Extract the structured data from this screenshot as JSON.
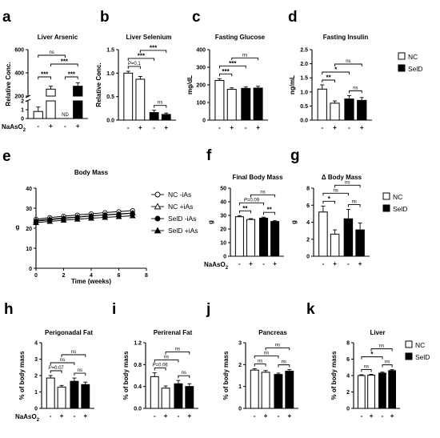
{
  "treatment_label": "NaAsO",
  "treatment_subscript": "2",
  "x_signs": [
    "-",
    "+",
    "-",
    "+"
  ],
  "legend": {
    "nc": "NC",
    "seld": "SelD"
  },
  "colors": {
    "nc_fill": "#ffffff",
    "seld_fill": "#000000",
    "axis": "#000000"
  },
  "chart_data": [
    {
      "id": "a",
      "letter": "a",
      "type": "bar",
      "title": "Liver Arsenic",
      "ylabel": "Relative Conc.",
      "categories": [
        "NC -",
        "NC +",
        "SelD -",
        "SelD +"
      ],
      "values": [
        0.8,
        260,
        0,
        285
      ],
      "errors": [
        0.5,
        25,
        0,
        30
      ],
      "ylim": [
        0,
        600
      ],
      "broken_axis": true,
      "yticks_low": [
        "0",
        "1",
        "2"
      ],
      "yticks_high": [
        "200",
        "400",
        "600"
      ],
      "annotations": [
        {
          "label": "***",
          "from": 0,
          "to": 1
        },
        {
          "label": "***",
          "from": 2,
          "to": 3
        },
        {
          "label": "***",
          "from": 1,
          "to": 3
        },
        {
          "label": "ns",
          "from": 0,
          "to": 2
        },
        {
          "label": "ND",
          "at": 2
        }
      ]
    },
    {
      "id": "b",
      "letter": "b",
      "type": "bar",
      "title": "Liver Selenium",
      "ylabel": "Relative Conc.",
      "values": [
        1.0,
        0.87,
        0.16,
        0.12
      ],
      "errors": [
        0.04,
        0.06,
        0.05,
        0.03
      ],
      "ylim": [
        0,
        1.5
      ],
      "yticks": [
        "0.0",
        "0.5",
        "1.0",
        "1.5"
      ],
      "annotations": [
        {
          "label": "P=0.1",
          "from": 0,
          "to": 1
        },
        {
          "label": "ns",
          "from": 2,
          "to": 3
        },
        {
          "label": "***",
          "from": 0,
          "to": 2
        },
        {
          "label": "***",
          "from": 1,
          "to": 3
        }
      ]
    },
    {
      "id": "c",
      "letter": "c",
      "type": "bar",
      "title": "Fasting Glucose",
      "ylabel": "mg/dL",
      "values": [
        225,
        175,
        180,
        182
      ],
      "errors": [
        10,
        8,
        8,
        10
      ],
      "ylim": [
        0,
        400
      ],
      "yticks": [
        "0",
        "100",
        "200",
        "300",
        "400"
      ],
      "annotations": [
        {
          "label": "***",
          "from": 0,
          "to": 1
        },
        {
          "label": "***",
          "from": 0,
          "to": 2
        },
        {
          "label": "ns",
          "from": 1,
          "to": 3
        }
      ]
    },
    {
      "id": "d",
      "letter": "d",
      "type": "bar",
      "title": "Fasting Insulin",
      "ylabel": "ng/mL",
      "values": [
        1.1,
        0.6,
        0.75,
        0.7
      ],
      "errors": [
        0.15,
        0.08,
        0.12,
        0.1
      ],
      "ylim": [
        0,
        2.5
      ],
      "yticks": [
        "0.0",
        "0.5",
        "1.0",
        "1.5",
        "2.0",
        "2.5"
      ],
      "annotations": [
        {
          "label": "**",
          "from": 0,
          "to": 1
        },
        {
          "label": "ns",
          "from": 2,
          "to": 3
        },
        {
          "label": "*",
          "from": 0,
          "to": 2
        },
        {
          "label": "ns",
          "from": 1,
          "to": 3
        }
      ]
    },
    {
      "id": "e",
      "letter": "e",
      "type": "line",
      "title": "Body Mass",
      "ylabel": "g",
      "xlabel": "Time (weeks)",
      "x": [
        0,
        1,
        2,
        3,
        4,
        5,
        6,
        7
      ],
      "xlim": [
        0,
        8
      ],
      "ylim": [
        0,
        40
      ],
      "xticks": [
        "0",
        "2",
        "4",
        "6",
        "8"
      ],
      "yticks": [
        "0",
        "10",
        "20",
        "30",
        "40"
      ],
      "series": [
        {
          "name": "NC -iAs",
          "marker": "open-circle",
          "values": [
            24.5,
            25.3,
            26.0,
            26.6,
            27.2,
            27.8,
            28.3,
            28.8
          ]
        },
        {
          "name": "NC +iAs",
          "marker": "open-triangle",
          "values": [
            23.8,
            24.5,
            25.1,
            25.6,
            26.2,
            26.7,
            27.1,
            27.6
          ]
        },
        {
          "name": "SelD -iAs",
          "marker": "filled-circle",
          "values": [
            23.5,
            24.2,
            24.9,
            25.5,
            26.1,
            26.6,
            27.0,
            27.5
          ]
        },
        {
          "name": "SelD +iAs",
          "marker": "filled-triangle",
          "values": [
            22.8,
            23.4,
            24.0,
            24.5,
            25.0,
            25.4,
            25.8,
            26.2
          ]
        }
      ]
    },
    {
      "id": "f",
      "letter": "f",
      "type": "bar",
      "title": "Final Body Mass",
      "ylabel": "g",
      "values": [
        29,
        27,
        28,
        25.5
      ],
      "errors": [
        0.8,
        0.6,
        0.7,
        0.6
      ],
      "ylim": [
        0,
        50
      ],
      "yticks": [
        "0",
        "10",
        "20",
        "30",
        "40",
        "50"
      ],
      "annotations": [
        {
          "label": "**",
          "from": 0,
          "to": 1
        },
        {
          "label": "**",
          "from": 2,
          "to": 3
        },
        {
          "label": "P=0.09",
          "from": 0,
          "to": 2
        },
        {
          "label": "ns",
          "from": 1,
          "to": 3
        }
      ]
    },
    {
      "id": "g",
      "letter": "g",
      "type": "bar",
      "title": "Δ Body Mass",
      "ylabel": "g",
      "values": [
        5.2,
        2.6,
        4.4,
        3.1
      ],
      "errors": [
        0.7,
        0.5,
        1.1,
        0.8
      ],
      "ylim": [
        0,
        8
      ],
      "yticks": [
        "0",
        "2",
        "4",
        "6",
        "8"
      ],
      "annotations": [
        {
          "label": "*",
          "from": 0,
          "to": 1
        },
        {
          "label": "ns",
          "from": 2,
          "to": 3
        },
        {
          "label": "ns",
          "from": 0,
          "to": 2
        },
        {
          "label": "ns",
          "from": 1,
          "to": 3
        }
      ]
    },
    {
      "id": "h",
      "letter": "h",
      "type": "bar",
      "title": "Perigonadal Fat",
      "ylabel": "% of body mass",
      "values": [
        1.85,
        1.3,
        1.65,
        1.45
      ],
      "errors": [
        0.15,
        0.1,
        0.2,
        0.15
      ],
      "ylim": [
        0,
        4
      ],
      "yticks": [
        "0",
        "1",
        "2",
        "3",
        "4"
      ],
      "annotations": [
        {
          "label": "P=0.07",
          "from": 0,
          "to": 1
        },
        {
          "label": "ns",
          "from": 2,
          "to": 3
        },
        {
          "label": "ns",
          "from": 0,
          "to": 2
        },
        {
          "label": "ns",
          "from": 1,
          "to": 3
        }
      ]
    },
    {
      "id": "i",
      "letter": "i",
      "type": "bar",
      "title": "Perirenal Fat",
      "ylabel": "% of body mass",
      "values": [
        0.58,
        0.37,
        0.45,
        0.4
      ],
      "errors": [
        0.07,
        0.04,
        0.06,
        0.05
      ],
      "ylim": [
        0,
        1.2
      ],
      "yticks": [
        "0.0",
        "0.4",
        "0.8",
        "1.2"
      ],
      "annotations": [
        {
          "label": "P=0.06",
          "from": 0,
          "to": 1
        },
        {
          "label": "ns",
          "from": 2,
          "to": 3
        },
        {
          "label": "ns",
          "from": 0,
          "to": 2
        },
        {
          "label": "ns",
          "from": 1,
          "to": 3
        }
      ]
    },
    {
      "id": "j",
      "letter": "j",
      "type": "bar",
      "title": "Pancreas",
      "ylabel": "% of body mass",
      "values": [
        1.75,
        1.65,
        1.55,
        1.7
      ],
      "errors": [
        0.06,
        0.08,
        0.06,
        0.07
      ],
      "ylim": [
        0,
        3
      ],
      "yticks": [
        "0",
        "1",
        "2",
        "3"
      ],
      "annotations": [
        {
          "label": "ns",
          "from": 0,
          "to": 1
        },
        {
          "label": "ns",
          "from": 2,
          "to": 3
        },
        {
          "label": "ns",
          "from": 0,
          "to": 2
        },
        {
          "label": "ns",
          "from": 1,
          "to": 3
        }
      ]
    },
    {
      "id": "k",
      "letter": "k",
      "type": "bar",
      "title": "Liver",
      "ylabel": "% of body mass",
      "values": [
        4.0,
        4.05,
        4.3,
        4.6
      ],
      "errors": [
        0.1,
        0.1,
        0.12,
        0.12
      ],
      "ylim": [
        0,
        8
      ],
      "yticks": [
        "0",
        "2",
        "4",
        "6",
        "8"
      ],
      "annotations": [
        {
          "label": "ns",
          "from": 0,
          "to": 1
        },
        {
          "label": "ns",
          "from": 2,
          "to": 3
        },
        {
          "label": "*",
          "from": 0,
          "to": 2
        },
        {
          "label": "ns",
          "from": 1,
          "to": 3
        }
      ]
    }
  ]
}
